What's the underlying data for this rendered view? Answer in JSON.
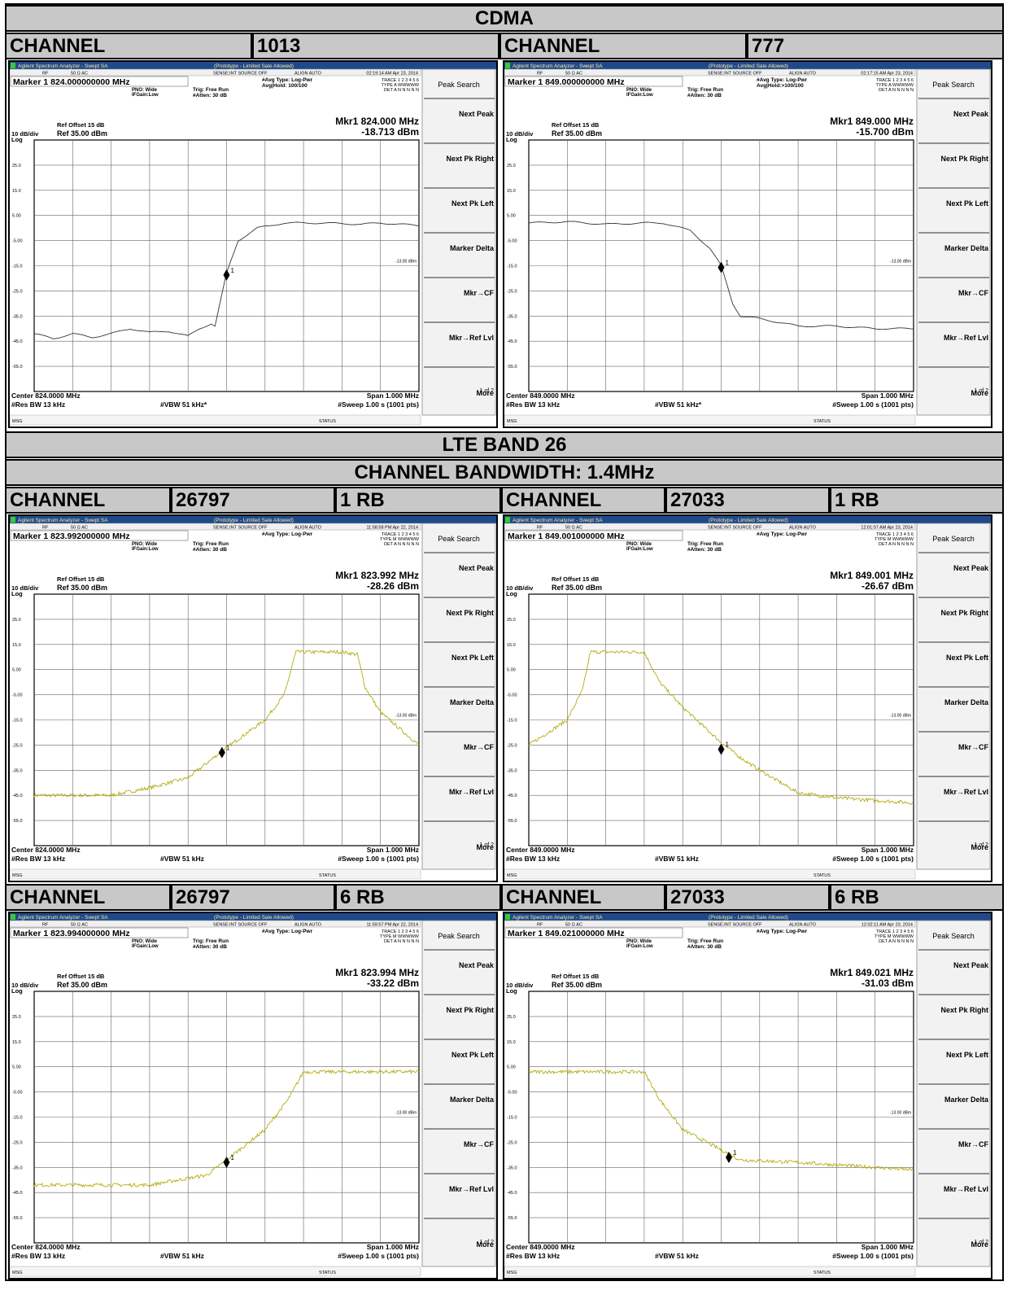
{
  "headers": [
    "CDMA",
    "LTE BAND 26",
    "CHANNEL BANDWIDTH: 1.4MHz"
  ],
  "channel_rows": [
    [
      "CHANNEL",
      "1013",
      "CHANNEL",
      "777"
    ],
    [
      "CHANNEL",
      "26797",
      "1 RB",
      "CHANNEL",
      "27033",
      "1 RB"
    ],
    [
      "CHANNEL",
      "26797",
      "6 RB",
      "CHANNEL",
      "27033",
      "6 RB"
    ]
  ],
  "analyzer": {
    "app": "Agilent Spectrum Analyzer - Swept SA",
    "proto": "(Prototype - Limited Sale Allowed)",
    "rf": "RF",
    "imp": "50 Ω  AC",
    "sense": "SENSE:INT SOURCE OFF",
    "align": "ALIGN AUTO",
    "pno": "PNO: Wide",
    "ifgain": "IFGain:Low",
    "trig": "Trig: Free Run",
    "atten": "#Atten: 30 dB",
    "avg_type": "#Avg Type: Log-Pwr",
    "trace": "TRACE 1 2 3 4 5 6",
    "det": "DET A N N N N N",
    "ref_offset": "Ref Offset 15 dB",
    "scale": "10 dB/div",
    "ref": "Ref 35.00 dBm",
    "log": "Log",
    "grid_labels": [
      "25.0",
      "15.0",
      "5.00",
      "-5.00",
      "-15.0",
      "-25.0",
      "-35.0",
      "-45.0",
      "-55.0"
    ],
    "limit": "-13.00 dBm",
    "span": "Span 1.000 MHz",
    "rbw": "#Res BW 13 kHz",
    "sweep": "#Sweep 1.00 s (1001 pts)",
    "msg": "MSG",
    "status": "STATUS",
    "softkeys": [
      "Peak Search",
      "Next Peak",
      "Next Pk Right",
      "Next Pk Left",
      "Marker Delta",
      "Mkr→CF",
      "Mkr→Ref Lvl",
      "More"
    ],
    "more_page": "1 of 2"
  },
  "panels": [
    {
      "time": "02:19:14 AM Apr 23, 2014",
      "marker": "Marker 1 824.000000000 MHz",
      "hold": "Avg|Hold: 100/100",
      "trace_type": "TYPE A WWWWW",
      "mkr_freq": "Mkr1 824.000 MHz",
      "mkr_level": "-18.713 dBm",
      "center": "Center 824.0000 MHz",
      "vbw": "#VBW 51 kHz*"
    },
    {
      "time": "02:17:15 AM Apr 23, 2014",
      "marker": "Marker 1 849.000000000 MHz",
      "hold": "Avg|Hold:>100/100",
      "trace_type": "TYPE A WWWWW",
      "mkr_freq": "Mkr1 849.000 MHz",
      "mkr_level": "-15.700 dBm",
      "center": "Center 849.0000 MHz",
      "vbw": "#VBW 51 kHz*"
    },
    {
      "time": "11:58:58 PM Apr 22, 2014",
      "marker": "Marker 1 823.992000000 MHz",
      "trace_type": "TYPE M WWWWW",
      "mkr_freq": "Mkr1 823.992 MHz",
      "mkr_level": "-28.26 dBm",
      "center": "Center 824.0000 MHz",
      "vbw": "#VBW 51 kHz"
    },
    {
      "time": "12:01:07 AM Apr 23, 2014",
      "marker": "Marker 1 849.001000000 MHz",
      "trace_type": "TYPE M WWWWW",
      "mkr_freq": "Mkr1 849.001 MHz",
      "mkr_level": "-26.67 dBm",
      "center": "Center 849.0000 MHz",
      "vbw": "#VBW 51 kHz"
    },
    {
      "time": "11:59:57 PM Apr 22, 2014",
      "marker": "Marker 1 823.994000000 MHz",
      "trace_type": "TYPE M WWWWW",
      "mkr_freq": "Mkr1 823.994 MHz",
      "mkr_level": "-33.22 dBm",
      "center": "Center 824.0000 MHz",
      "vbw": "#VBW 51 kHz"
    },
    {
      "time": "12:02:11 AM Apr 23, 2014",
      "marker": "Marker 1 849.021000000 MHz",
      "trace_type": "TYPE M WWWWW",
      "mkr_freq": "Mkr1 849.021 MHz",
      "mkr_level": "-31.03 dBm",
      "center": "Center 849.0000 MHz",
      "vbw": "#VBW 51 kHz"
    }
  ]
}
